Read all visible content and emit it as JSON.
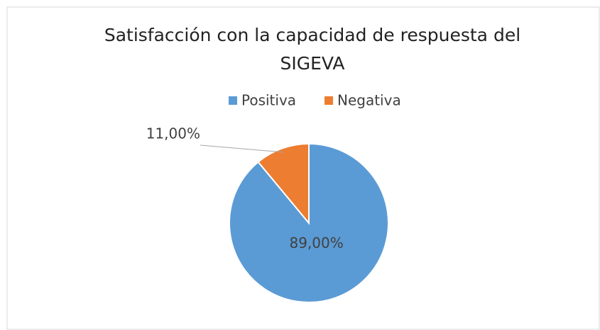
{
  "chart_data": {
    "type": "pie",
    "title": "Satisfacción con la capacidad de respuesta del SIGEVA",
    "categories": [
      "Positiva",
      "Negativa"
    ],
    "values": [
      89,
      11
    ],
    "value_labels": [
      "89,00%",
      "11,00%"
    ],
    "colors": [
      "#5b9bd5",
      "#ed7d31"
    ],
    "legend": "top"
  }
}
